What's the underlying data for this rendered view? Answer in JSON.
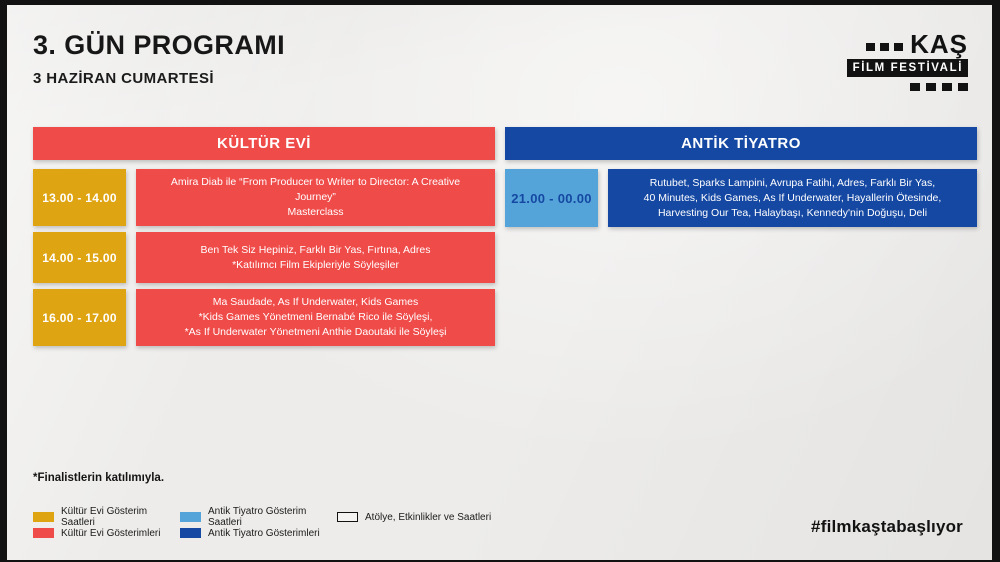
{
  "page": {
    "title": "3. GÜN PROGRAMI",
    "subtitle": "3 HAZİRAN CUMARTESİ",
    "footnote": "*Finalistlerin katılımıyla.",
    "hashtag": "#filmkaştabaşlıyor"
  },
  "logo": {
    "name": "KAŞ",
    "subtitle": "FİLM FESTİVALİ"
  },
  "colors": {
    "red": "#EF4B49",
    "yellow": "#DFA411",
    "darkblue": "#1548A3",
    "lightblue": "#54A4D9",
    "frame": "#121212",
    "paper": "#EDECEA"
  },
  "columns": [
    {
      "id": "kultur-evi",
      "header": "KÜLTÜR EVİ",
      "rows": [
        {
          "time": "13.00 - 14.00",
          "lines": [
            "Amira Diab ile “From Producer to Writer to Director: A Creative Journey”",
            "Masterclass"
          ]
        },
        {
          "time": "14.00 - 15.00",
          "lines": [
            "Ben Tek Siz Hepiniz, Farklı Bir Yas, Fırtına, Adres",
            "*Katılımcı Film Ekipleriyle Söyleşiler"
          ]
        },
        {
          "time": "16.00 - 17.00",
          "lines": [
            "Ma Saudade, As If Underwater, Kids Games",
            "*Kids Games Yönetmeni Bernabé Rico ile Söyleşi,",
            "*As If Underwater Yönetmeni Anthie Daoutaki ile Söyleşi"
          ]
        }
      ]
    },
    {
      "id": "antik-tiyatro",
      "header": "ANTİK TİYATRO",
      "rows": [
        {
          "time": "21.00 - 00.00",
          "lines": [
            "Rutubet, Sparks Lampini, Avrupa Fatihi, Adres, Farklı Bir Yas,",
            "40 Minutes, Kids Games, As If Underwater, Hayallerin Ötesinde,",
            "Harvesting Our Tea, Halaybaşı, Kennedy'nin Doğuşu, Deli"
          ]
        }
      ]
    }
  ],
  "legend": [
    {
      "swatch": "yellow",
      "label": "Kültür Evi Gösterim Saatleri"
    },
    {
      "swatch": "red",
      "label": "Kültür Evi Gösterimleri"
    },
    {
      "swatch": "lightblue",
      "label": "Antik Tiyatro Gösterim Saatleri"
    },
    {
      "swatch": "darkblue",
      "label": "Antik Tiyatro Gösterimleri"
    },
    {
      "swatch": "outline",
      "label": "Atölye, Etkinlikler ve Saatleri"
    }
  ]
}
